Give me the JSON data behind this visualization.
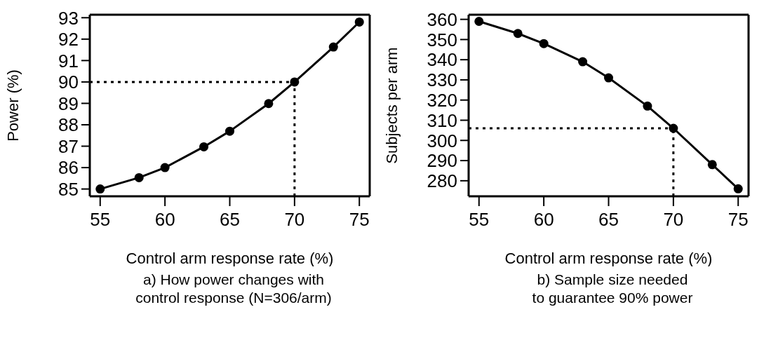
{
  "chart_data": [
    {
      "type": "line",
      "title": "a) How power changes with\ncontrol response (N=306/arm)",
      "xlabel": "Control arm response rate (%)",
      "ylabel": "Power (%)",
      "x": [
        55,
        58,
        60,
        63,
        65,
        68,
        70,
        73,
        75
      ],
      "series": [
        {
          "color": "#000000",
          "values": [
            85.0,
            85.53,
            86.0,
            86.97,
            87.7,
            88.99,
            90.0,
            91.63,
            92.8
          ]
        }
      ],
      "xlim": [
        54.2,
        75.8
      ],
      "xticks": [
        55,
        60,
        65,
        70,
        75
      ],
      "ylim": [
        84.66,
        93.14
      ],
      "yticks": [
        85,
        86,
        87,
        88,
        89,
        90,
        91,
        92,
        93
      ],
      "ref_lines": [
        {
          "axis": "y",
          "value": 90,
          "line_style": "dotted",
          "color": "#000000"
        },
        {
          "axis": "x",
          "value": 70,
          "line_style": "dotted",
          "color": "#000000"
        }
      ],
      "grid": false,
      "legend": false,
      "marker": "circle",
      "line_style": "solid"
    },
    {
      "type": "line",
      "title": "b) Sample size needed\nto guarantee 90% power",
      "xlabel": "Control arm response rate (%)",
      "ylabel": "Subjects per arm",
      "x": [
        55,
        58,
        60,
        63,
        65,
        68,
        70,
        73,
        75
      ],
      "series": [
        {
          "color": "#000000",
          "values": [
            359,
            353,
            348,
            339,
            331,
            317,
            306,
            288,
            276
          ]
        }
      ],
      "xlim": [
        54.2,
        75.8
      ],
      "xticks": [
        55,
        60,
        65,
        70,
        75
      ],
      "ylim": [
        272.3,
        362.3
      ],
      "yticks": [
        280,
        290,
        300,
        310,
        320,
        330,
        340,
        350,
        360
      ],
      "ref_lines": [
        {
          "axis": "y",
          "value": 306,
          "line_style": "dotted",
          "color": "#000000"
        },
        {
          "axis": "x",
          "value": 70,
          "line_style": "dotted",
          "color": "#000000"
        }
      ],
      "grid": false,
      "legend": false,
      "marker": "circle",
      "line_style": "solid"
    }
  ]
}
